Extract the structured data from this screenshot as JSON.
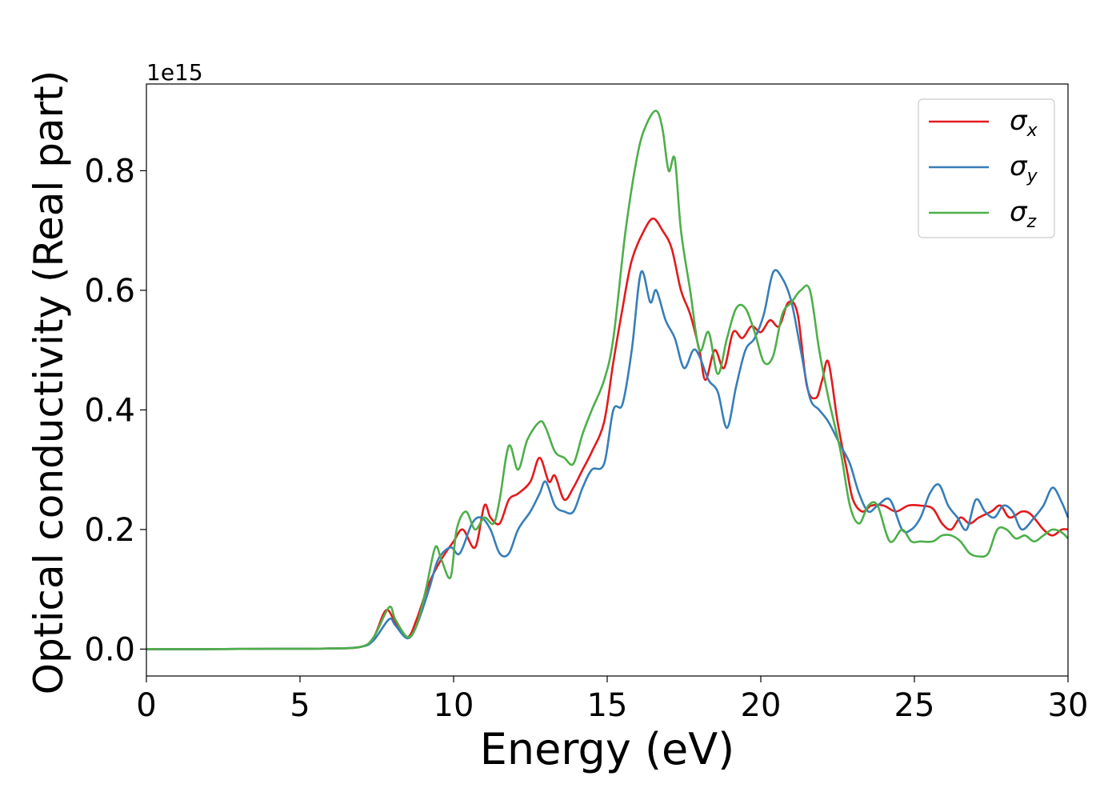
{
  "chart_data": {
    "type": "line",
    "title": "",
    "xlabel": "Energy (eV)",
    "ylabel": "Optical conductivity (Real part)",
    "y_offset_label": "1e15",
    "xlim": [
      0,
      30
    ],
    "ylim": [
      -0.045,
      0.945
    ],
    "x_ticks": [
      0,
      5,
      10,
      15,
      20,
      25,
      30
    ],
    "x_tick_labels": [
      "0",
      "5",
      "10",
      "15",
      "20",
      "25",
      "30"
    ],
    "y_ticks": [
      0.0,
      0.2,
      0.4,
      0.6,
      0.8
    ],
    "y_tick_labels": [
      "0.0",
      "0.2",
      "0.4",
      "0.6",
      "0.8"
    ],
    "grid": false,
    "legend_position": "top-right",
    "series": [
      {
        "name": "σ",
        "subscript": "x",
        "color": "#e41a1c",
        "x": [
          0,
          2,
          4,
          6,
          7,
          7.4,
          7.8,
          8.1,
          8.5,
          8.8,
          9.2,
          9.6,
          10,
          10.3,
          10.7,
          11,
          11.2,
          11.5,
          11.8,
          12.1,
          12.5,
          12.8,
          13.1,
          13.3,
          13.6,
          13.9,
          14.2,
          14.5,
          14.9,
          15.2,
          15.5,
          15.8,
          16.2,
          16.5,
          16.8,
          17.1,
          17.4,
          17.7,
          18.0,
          18.2,
          18.5,
          18.8,
          19.1,
          19.4,
          19.7,
          20.0,
          20.3,
          20.6,
          20.9,
          21.2,
          21.5,
          21.8,
          22.0,
          22.2,
          22.5,
          22.8,
          23.0,
          23.3,
          23.6,
          24.0,
          24.4,
          24.8,
          25.2,
          25.6,
          25.9,
          26.2,
          26.5,
          26.8,
          27.1,
          27.5,
          27.8,
          28.1,
          28.5,
          28.8,
          29.2,
          29.5,
          29.8,
          30
        ],
        "y": [
          0,
          0,
          0.0005,
          0.001,
          0.004,
          0.02,
          0.065,
          0.045,
          0.02,
          0.05,
          0.11,
          0.15,
          0.18,
          0.2,
          0.17,
          0.24,
          0.22,
          0.21,
          0.25,
          0.26,
          0.28,
          0.32,
          0.28,
          0.29,
          0.25,
          0.27,
          0.3,
          0.33,
          0.38,
          0.48,
          0.57,
          0.65,
          0.7,
          0.72,
          0.7,
          0.67,
          0.6,
          0.56,
          0.5,
          0.45,
          0.5,
          0.47,
          0.53,
          0.52,
          0.54,
          0.53,
          0.55,
          0.54,
          0.58,
          0.56,
          0.44,
          0.42,
          0.45,
          0.48,
          0.38,
          0.3,
          0.25,
          0.23,
          0.24,
          0.24,
          0.23,
          0.24,
          0.24,
          0.235,
          0.21,
          0.2,
          0.22,
          0.21,
          0.22,
          0.23,
          0.24,
          0.22,
          0.23,
          0.225,
          0.2,
          0.19,
          0.2,
          0.2
        ]
      },
      {
        "name": "σ",
        "subscript": "y",
        "color": "#377eb8",
        "x": [
          0,
          2,
          4,
          6,
          7,
          7.4,
          7.9,
          8.1,
          8.5,
          8.8,
          9.2,
          9.5,
          9.9,
          10.2,
          10.6,
          10.9,
          11.2,
          11.5,
          11.8,
          12.1,
          12.5,
          12.8,
          13.0,
          13.3,
          13.6,
          13.9,
          14.2,
          14.5,
          14.9,
          15.2,
          15.5,
          15.8,
          16.1,
          16.4,
          16.6,
          16.9,
          17.2,
          17.5,
          17.8,
          18.0,
          18.3,
          18.6,
          18.9,
          19.2,
          19.5,
          19.8,
          20.1,
          20.4,
          20.7,
          21.0,
          21.3,
          21.6,
          21.9,
          22.2,
          22.6,
          22.9,
          23.2,
          23.5,
          23.8,
          24.2,
          24.6,
          24.9,
          25.2,
          25.5,
          25.8,
          26.1,
          26.4,
          26.7,
          27.0,
          27.3,
          27.6,
          27.9,
          28.2,
          28.5,
          28.9,
          29.2,
          29.5,
          29.8,
          30
        ],
        "y": [
          0,
          0,
          0.0005,
          0.001,
          0.004,
          0.015,
          0.05,
          0.04,
          0.018,
          0.04,
          0.1,
          0.15,
          0.17,
          0.16,
          0.21,
          0.22,
          0.2,
          0.16,
          0.16,
          0.2,
          0.23,
          0.26,
          0.28,
          0.24,
          0.23,
          0.23,
          0.27,
          0.3,
          0.31,
          0.4,
          0.41,
          0.5,
          0.63,
          0.58,
          0.6,
          0.55,
          0.52,
          0.47,
          0.5,
          0.49,
          0.45,
          0.43,
          0.37,
          0.44,
          0.5,
          0.52,
          0.56,
          0.63,
          0.62,
          0.58,
          0.5,
          0.42,
          0.4,
          0.38,
          0.34,
          0.31,
          0.26,
          0.23,
          0.24,
          0.25,
          0.2,
          0.2,
          0.22,
          0.26,
          0.275,
          0.24,
          0.22,
          0.2,
          0.25,
          0.23,
          0.22,
          0.24,
          0.23,
          0.2,
          0.22,
          0.24,
          0.27,
          0.245,
          0.22
        ]
      },
      {
        "name": "σ",
        "subscript": "z",
        "color": "#4daf4a",
        "x": [
          0,
          2,
          4,
          6,
          7,
          7.4,
          7.9,
          8.1,
          8.5,
          8.8,
          9.1,
          9.4,
          9.6,
          9.9,
          10.1,
          10.4,
          10.7,
          11.0,
          11.3,
          11.5,
          11.8,
          12.1,
          12.4,
          12.8,
          13.0,
          13.3,
          13.6,
          13.9,
          14.2,
          14.5,
          14.9,
          15.2,
          15.6,
          16.0,
          16.3,
          16.6,
          16.8,
          17.0,
          17.2,
          17.4,
          17.7,
          18.0,
          18.3,
          18.6,
          18.9,
          19.2,
          19.5,
          19.8,
          20.1,
          20.4,
          20.7,
          21.0,
          21.3,
          21.6,
          21.9,
          22.2,
          22.6,
          22.9,
          23.2,
          23.5,
          23.8,
          24.2,
          24.6,
          24.9,
          25.2,
          25.6,
          25.9,
          26.2,
          26.5,
          26.8,
          27.1,
          27.4,
          27.7,
          28.0,
          28.3,
          28.6,
          28.9,
          29.2,
          29.5,
          29.8,
          30
        ],
        "y": [
          0,
          0,
          0.0005,
          0.001,
          0.004,
          0.02,
          0.07,
          0.05,
          0.02,
          0.04,
          0.1,
          0.17,
          0.15,
          0.12,
          0.2,
          0.23,
          0.2,
          0.22,
          0.21,
          0.25,
          0.34,
          0.3,
          0.35,
          0.38,
          0.37,
          0.33,
          0.32,
          0.31,
          0.36,
          0.4,
          0.45,
          0.52,
          0.7,
          0.83,
          0.88,
          0.9,
          0.87,
          0.8,
          0.82,
          0.7,
          0.6,
          0.5,
          0.53,
          0.46,
          0.52,
          0.57,
          0.57,
          0.53,
          0.48,
          0.49,
          0.56,
          0.58,
          0.6,
          0.6,
          0.5,
          0.42,
          0.33,
          0.24,
          0.21,
          0.24,
          0.24,
          0.18,
          0.2,
          0.18,
          0.18,
          0.18,
          0.19,
          0.19,
          0.18,
          0.16,
          0.155,
          0.16,
          0.2,
          0.2,
          0.185,
          0.19,
          0.18,
          0.19,
          0.2,
          0.195,
          0.185
        ]
      }
    ]
  }
}
